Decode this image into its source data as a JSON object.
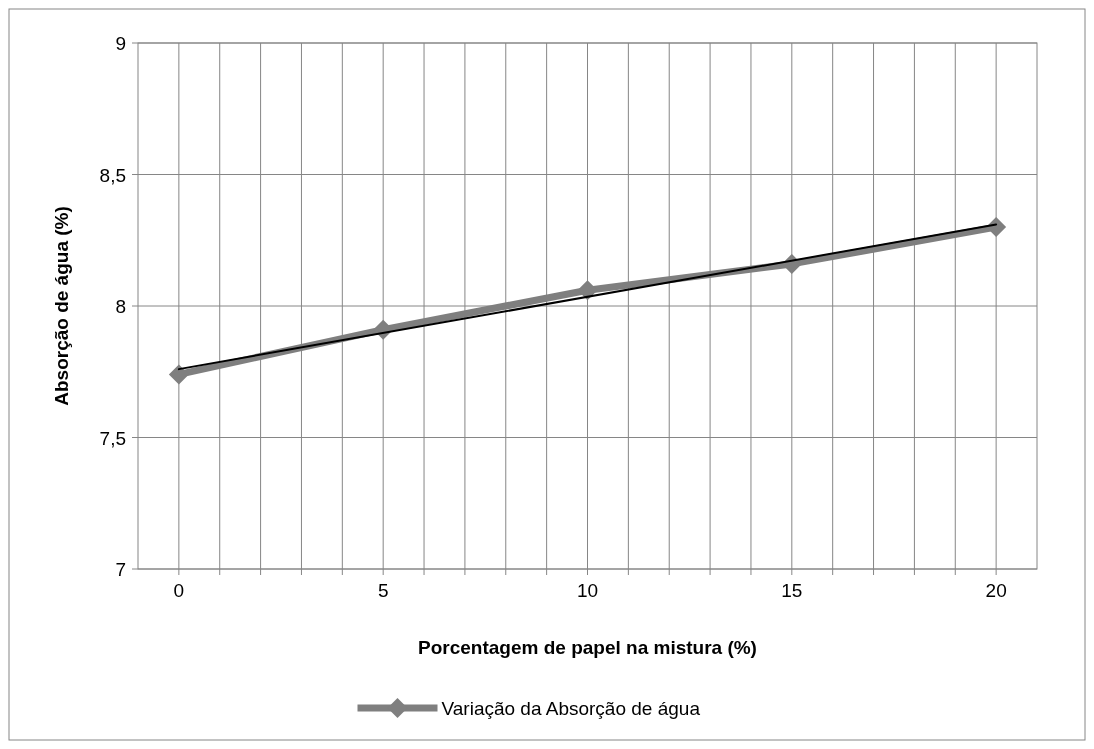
{
  "chart_data": {
    "type": "line",
    "xlabel": "Porcentagem de papel na mistura (%)",
    "ylabel": "Absorção de água (%)",
    "x": [
      0,
      5,
      10,
      15,
      20
    ],
    "series": [
      {
        "name": "Variação da Absorção de água",
        "color": "#7f7f7f",
        "values": [
          7.74,
          7.91,
          8.06,
          8.16,
          8.3
        ],
        "marker": "diamond"
      },
      {
        "color": "#000000",
        "x": [
          0,
          20
        ],
        "values": [
          7.76,
          8.31
        ],
        "marker": "none"
      }
    ],
    "xlim": [
      -1,
      21
    ],
    "xticks": [
      0,
      {
        "value": 1,
        "label": null
      },
      {
        "value": 2,
        "label": null
      },
      {
        "value": 3,
        "label": null
      },
      {
        "value": 4,
        "label": null
      },
      5,
      {
        "value": 6,
        "label": null
      },
      {
        "value": 7,
        "label": null
      },
      {
        "value": 8,
        "label": null
      },
      {
        "value": 9,
        "label": null
      },
      10,
      {
        "value": 11,
        "label": null
      },
      {
        "value": 12,
        "label": null
      },
      {
        "value": 13,
        "label": null
      },
      {
        "value": 14,
        "label": null
      },
      15,
      {
        "value": 16,
        "label": null
      },
      {
        "value": 17,
        "label": null
      },
      {
        "value": 18,
        "label": null
      },
      {
        "value": 19,
        "label": null
      },
      20
    ],
    "ylim": [
      7,
      9
    ],
    "yticks": [
      {
        "value": 7,
        "label": "7"
      },
      {
        "value": 7.5,
        "label": "7,5"
      },
      {
        "value": 8,
        "label": "8"
      },
      {
        "value": 8.5,
        "label": "8,5"
      },
      {
        "value": 9,
        "label": "9"
      }
    ],
    "grid": true,
    "legend": "bottom",
    "line_style": "solid"
  }
}
